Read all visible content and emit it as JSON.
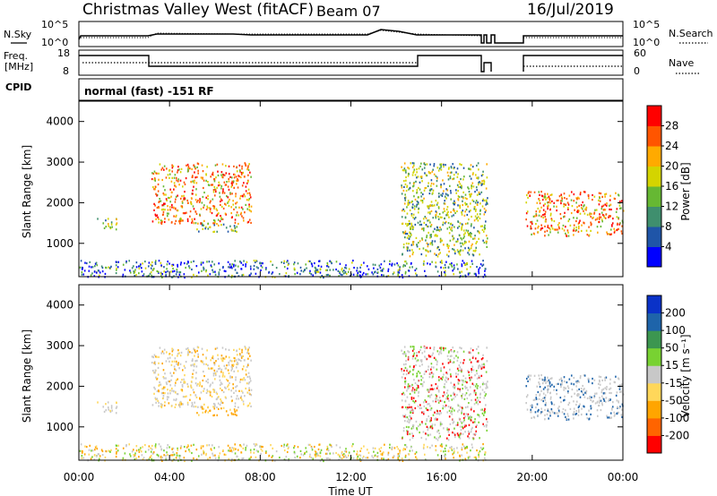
{
  "header": {
    "station": "Christmas Valley West (fitACF)",
    "beam": "Beam 07",
    "date": "16/Jul/2019"
  },
  "top_panels": {
    "nsky_label": "N.Sky",
    "nsky_ticks": [
      "10^5",
      "10^0"
    ],
    "nsearch_label": "N.Search",
    "nsearch_ticks": [
      "10^5",
      "10^0"
    ],
    "freq_label_1": "Freq.",
    "freq_label_2": "[MHz]",
    "freq_ticks": [
      "18",
      "8"
    ],
    "nave_label": "Nave",
    "nave_ticks": [
      "60",
      "0"
    ],
    "cpid_label": "CPID",
    "cpid_text": "normal (fast) -151 RF"
  },
  "chart_data": [
    {
      "type": "heatmap",
      "name": "power",
      "ylabel": "Slant Range [km]",
      "yticks": [
        "4000",
        "3000",
        "2000",
        "1000"
      ],
      "ylim": [
        180,
        4500
      ],
      "colorbar_label": "Power [dB]",
      "colorbar_ticks": [
        "28",
        "24",
        "20",
        "16",
        "12",
        "8",
        "4"
      ],
      "colorbar_colors": [
        "#0000ff",
        "#1f55a8",
        "#3f8f6e",
        "#66b833",
        "#d4d400",
        "#ffaa00",
        "#ff5500",
        "#ff0000"
      ],
      "scatter_regions": [
        {
          "t": [
            0.8,
            1.7
          ],
          "r": [
            1350,
            1650
          ],
          "level": "medium"
        },
        {
          "t": [
            3.2,
            7.6
          ],
          "r": [
            1500,
            3000
          ],
          "level": "high"
        },
        {
          "t": [
            5.0,
            7.0
          ],
          "r": [
            1300,
            1500
          ],
          "level": "medium"
        },
        {
          "t": [
            14.2,
            18.0
          ],
          "r": [
            700,
            3000
          ],
          "level": "medium"
        },
        {
          "t": [
            19.7,
            24.0
          ],
          "r": [
            1200,
            2300
          ],
          "level": "high"
        },
        {
          "t": [
            0.0,
            18.0
          ],
          "r": [
            180,
            600
          ],
          "level": "low"
        }
      ]
    },
    {
      "type": "heatmap",
      "name": "velocity",
      "ylabel": "Slant Range [km]",
      "yticks": [
        "4000",
        "3000",
        "2000",
        "1000"
      ],
      "ylim": [
        180,
        4500
      ],
      "xlabel": "Time UT",
      "xticks": [
        "00:00",
        "04:00",
        "08:00",
        "12:00",
        "16:00",
        "20:00",
        "00:00"
      ],
      "colorbar_label": "Velocity [m s⁻¹]",
      "colorbar_ticks": [
        "200",
        "100",
        "50",
        "15",
        "-15",
        "-50",
        "-100",
        "-200"
      ],
      "colorbar_colors": [
        "#ff0000",
        "#ff6400",
        "#ffa500",
        "#ffd75a",
        "#c8c8c8",
        "#78d232",
        "#3c9650",
        "#1e64aa",
        "#0a32c8"
      ]
    }
  ]
}
